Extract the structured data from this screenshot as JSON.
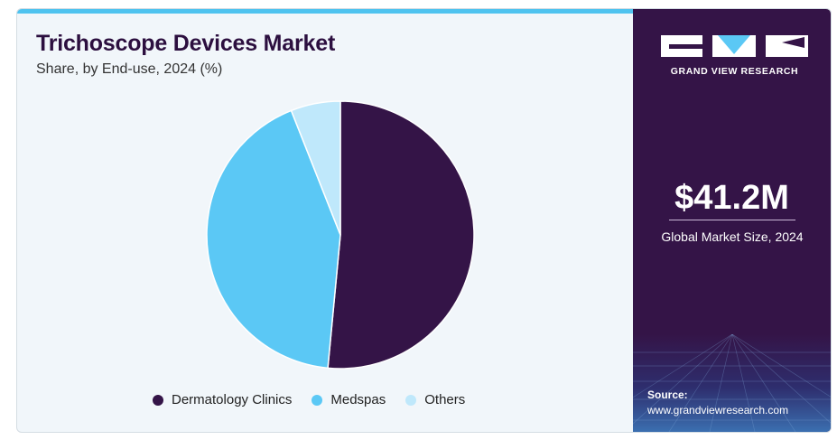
{
  "header": {
    "title": "Trichoscope Devices Market",
    "subtitle": "Share, by End-use, 2024 (%)"
  },
  "brand": {
    "name": "GRAND VIEW RESEARCH",
    "logo_icon": "gvr-logo-icon"
  },
  "highlight": {
    "value": "$41.2M",
    "label": "Global Market Size, 2024"
  },
  "source": {
    "label": "Source:",
    "url": "www.grandviewresearch.com"
  },
  "chart_data": {
    "type": "pie",
    "title": "Trichoscope Devices Market",
    "subtitle": "Share, by End-use, 2024 (%)",
    "categories": [
      "Dermatology Clinics",
      "Medspas",
      "Others"
    ],
    "values": [
      51.5,
      42.5,
      6.0
    ],
    "colors": [
      "#341447",
      "#5bc8f5",
      "#bfe8fb"
    ],
    "legend_position": "bottom"
  }
}
